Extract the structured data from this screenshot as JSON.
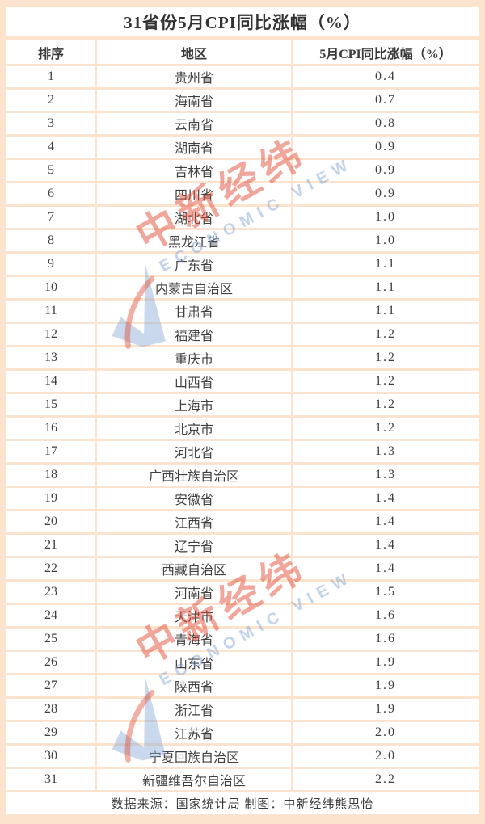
{
  "page": {
    "title": "31省份5月CPI同比涨幅（%）",
    "footer": "数据来源：国家统计局 制图：中新经纬熊思怡"
  },
  "table": {
    "columns": {
      "rank": "排序",
      "region": "地区",
      "value": "5月CPI同比涨幅（%）"
    },
    "rows": [
      {
        "rank": "1",
        "region": "贵州省",
        "value": "0.4"
      },
      {
        "rank": "2",
        "region": "海南省",
        "value": "0.7"
      },
      {
        "rank": "3",
        "region": "云南省",
        "value": "0.8"
      },
      {
        "rank": "4",
        "region": "湖南省",
        "value": "0.9"
      },
      {
        "rank": "5",
        "region": "吉林省",
        "value": "0.9"
      },
      {
        "rank": "6",
        "region": "四川省",
        "value": "0.9"
      },
      {
        "rank": "7",
        "region": "湖北省",
        "value": "1.0"
      },
      {
        "rank": "8",
        "region": "黑龙江省",
        "value": "1.0"
      },
      {
        "rank": "9",
        "region": "广东省",
        "value": "1.1"
      },
      {
        "rank": "10",
        "region": "内蒙古自治区",
        "value": "1.1"
      },
      {
        "rank": "11",
        "region": "甘肃省",
        "value": "1.1"
      },
      {
        "rank": "12",
        "region": "福建省",
        "value": "1.2"
      },
      {
        "rank": "13",
        "region": "重庆市",
        "value": "1.2"
      },
      {
        "rank": "14",
        "region": "山西省",
        "value": "1.2"
      },
      {
        "rank": "15",
        "region": "上海市",
        "value": "1.2"
      },
      {
        "rank": "16",
        "region": "北京市",
        "value": "1.2"
      },
      {
        "rank": "17",
        "region": "河北省",
        "value": "1.3"
      },
      {
        "rank": "18",
        "region": "广西壮族自治区",
        "value": "1.3"
      },
      {
        "rank": "19",
        "region": "安徽省",
        "value": "1.4"
      },
      {
        "rank": "20",
        "region": "江西省",
        "value": "1.4"
      },
      {
        "rank": "21",
        "region": "辽宁省",
        "value": "1.4"
      },
      {
        "rank": "22",
        "region": "西藏自治区",
        "value": "1.4"
      },
      {
        "rank": "23",
        "region": "河南省",
        "value": "1.5"
      },
      {
        "rank": "24",
        "region": "天津市",
        "value": "1.6"
      },
      {
        "rank": "25",
        "region": "青海省",
        "value": "1.6"
      },
      {
        "rank": "26",
        "region": "山东省",
        "value": "1.9"
      },
      {
        "rank": "27",
        "region": "陕西省",
        "value": "1.9"
      },
      {
        "rank": "28",
        "region": "浙江省",
        "value": "1.9"
      },
      {
        "rank": "29",
        "region": "江苏省",
        "value": "2.0"
      },
      {
        "rank": "30",
        "region": "宁夏回族自治区",
        "value": "2.0"
      },
      {
        "rank": "31",
        "region": "新疆维吾尔自治区",
        "value": "2.2"
      }
    ]
  },
  "watermark": {
    "cn": "中新经纬",
    "en": "ECONOMIC VIEW"
  },
  "colors": {
    "background": "#fbe3cd",
    "row_background": "#ffffff",
    "text": "#3b3b3b",
    "watermark_red": "#e24e37",
    "watermark_blue": "#7da3d4"
  },
  "chart_data": {
    "type": "table",
    "title": "31省份5月CPI同比涨幅（%）",
    "columns": [
      "排序",
      "地区",
      "5月CPI同比涨幅（%）"
    ],
    "rows": [
      [
        1,
        "贵州省",
        0.4
      ],
      [
        2,
        "海南省",
        0.7
      ],
      [
        3,
        "云南省",
        0.8
      ],
      [
        4,
        "湖南省",
        0.9
      ],
      [
        5,
        "吉林省",
        0.9
      ],
      [
        6,
        "四川省",
        0.9
      ],
      [
        7,
        "湖北省",
        1.0
      ],
      [
        8,
        "黑龙江省",
        1.0
      ],
      [
        9,
        "广东省",
        1.1
      ],
      [
        10,
        "内蒙古自治区",
        1.1
      ],
      [
        11,
        "甘肃省",
        1.1
      ],
      [
        12,
        "福建省",
        1.2
      ],
      [
        13,
        "重庆市",
        1.2
      ],
      [
        14,
        "山西省",
        1.2
      ],
      [
        15,
        "上海市",
        1.2
      ],
      [
        16,
        "北京市",
        1.2
      ],
      [
        17,
        "河北省",
        1.3
      ],
      [
        18,
        "广西壮族自治区",
        1.3
      ],
      [
        19,
        "安徽省",
        1.4
      ],
      [
        20,
        "江西省",
        1.4
      ],
      [
        21,
        "辽宁省",
        1.4
      ],
      [
        22,
        "西藏自治区",
        1.4
      ],
      [
        23,
        "河南省",
        1.5
      ],
      [
        24,
        "天津市",
        1.6
      ],
      [
        25,
        "青海省",
        1.6
      ],
      [
        26,
        "山东省",
        1.9
      ],
      [
        27,
        "陕西省",
        1.9
      ],
      [
        28,
        "浙江省",
        1.9
      ],
      [
        29,
        "江苏省",
        2.0
      ],
      [
        30,
        "宁夏回族自治区",
        2.0
      ],
      [
        31,
        "新疆维吾尔自治区",
        2.2
      ]
    ],
    "source_note": "数据来源：国家统计局 制图：中新经纬熊思怡"
  }
}
